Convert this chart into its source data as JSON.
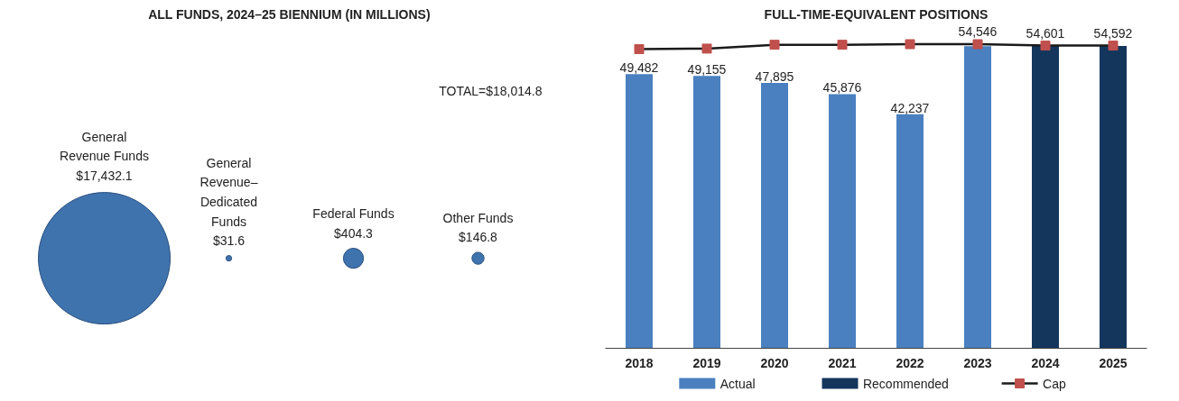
{
  "chart_data": [
    {
      "type": "other",
      "title": "ALL FUNDS, 2024–25 BIENNIUM (IN MILLIONS)",
      "categories": [
        "General Revenue Funds",
        "General Revenue–Dedicated Funds",
        "Federal Funds",
        "Other Funds"
      ],
      "values": [
        17432.1,
        31.6,
        404.3,
        146.8
      ],
      "value_labels": [
        "$17,432.1",
        "$31.6",
        "$404.3",
        "$146.8"
      ],
      "color": "#3f73ae",
      "annotations": [
        "TOTAL=$18,014.8"
      ]
    },
    {
      "type": "bar",
      "title": "FULL-TIME-EQUIVALENT POSITIONS",
      "categories": [
        "2018",
        "2019",
        "2020",
        "2021",
        "2022",
        "2023",
        "2024",
        "2025"
      ],
      "series": [
        {
          "name": "Actual",
          "type": "bar",
          "color": "#4a80c0",
          "values": [
            49482,
            49155,
            47895,
            45876,
            42237,
            54546,
            null,
            null
          ],
          "value_labels": [
            "49,482",
            "49,155",
            "47,895",
            "45,876",
            "42,237",
            "54,546",
            null,
            null
          ]
        },
        {
          "name": "Recommended",
          "type": "bar",
          "color": "#14365d",
          "values": [
            null,
            null,
            null,
            null,
            null,
            null,
            54601,
            54592
          ],
          "value_labels": [
            null,
            null,
            null,
            null,
            null,
            null,
            "54,601",
            "54,592"
          ]
        },
        {
          "name": "Cap",
          "type": "line",
          "color": "#1a1a1a",
          "colors": [
            "#c0504d",
            "#c0504d",
            "#c0504d",
            "#c0504d",
            "#c0504d",
            "#c0504d",
            "#c0504d",
            "#c0504d"
          ],
          "marker": "square",
          "values": [
            54000,
            54100,
            54800,
            54800,
            54900,
            54900,
            54650,
            54650
          ]
        }
      ],
      "tick_labels": "x",
      "legend": "bottom",
      "grid": false
    }
  ]
}
